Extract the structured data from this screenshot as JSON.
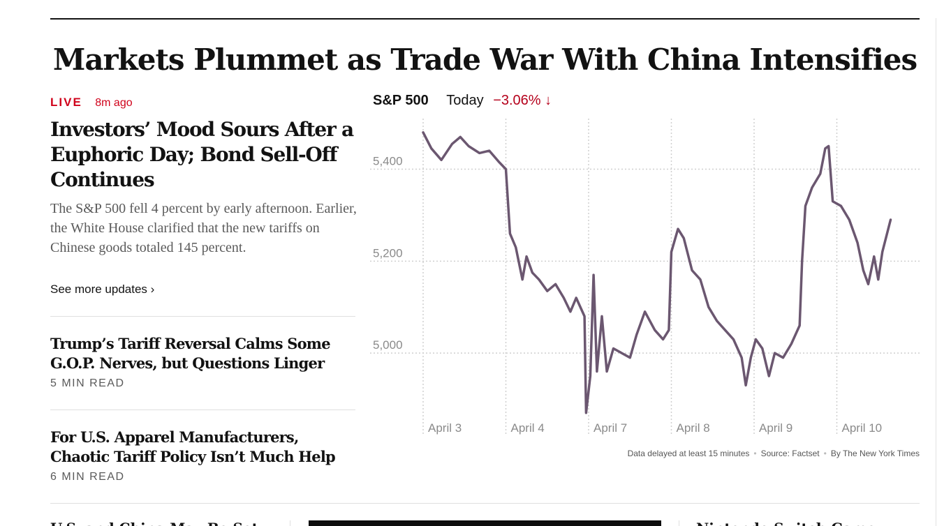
{
  "headline": "Markets Plummet as Trade War With China Intensifies",
  "lead": {
    "live_label": "LIVE",
    "time_ago": "8m ago",
    "title": "Investors’ Mood Sours After a Euphoric Day; Bond Sell-Off Continues",
    "summary": "The S&P 500 fell 4 percent by early afternoon. Earlier, the White House clarified that the new tariffs on Chinese goods totaled 145 percent.",
    "more_link": "See more updates ›"
  },
  "stories": [
    {
      "title": "Trump’s Tariff Reversal Calms Some G.O.P. Nerves, but Questions Linger",
      "read_time": "5 MIN READ"
    },
    {
      "title": "For U.S. Apparel Manufacturers, Chaotic Tariff Policy Isn’t Much Help",
      "read_time": "6 MIN READ"
    }
  ],
  "chart_header": {
    "index": "S&P 500",
    "period": "Today",
    "change": "−3.06% ↓"
  },
  "chart_notes": [
    "Data delayed at least 15 minutes",
    "Source: Factset",
    "By The New York Times"
  ],
  "bottom_cut": {
    "left_text": "U.S. and China May Be Set",
    "right_text": "Nintendo Switch Game Console"
  },
  "colors": {
    "line": "#6b5770",
    "live": "#d0021b",
    "change": "#b5001b"
  },
  "chart_data": {
    "type": "line",
    "title": "S&P 500",
    "categories": [
      "April 3",
      "April 4",
      "April 7",
      "April 8",
      "April 9",
      "April 10"
    ],
    "y_ticks": [
      5000,
      5200,
      5400
    ],
    "y_tick_labels": [
      "5,000",
      "5,200",
      "5,400"
    ],
    "ylim": [
      4850,
      5510
    ],
    "grid": true,
    "series": [
      {
        "values": [
          [
            0.0,
            5480
          ],
          [
            0.1,
            5445
          ],
          [
            0.22,
            5420
          ],
          [
            0.35,
            5455
          ],
          [
            0.45,
            5470
          ],
          [
            0.55,
            5450
          ],
          [
            0.68,
            5435
          ],
          [
            0.8,
            5440
          ],
          [
            0.92,
            5415
          ],
          [
            1.0,
            5400
          ],
          [
            1.05,
            5260
          ],
          [
            1.12,
            5230
          ],
          [
            1.2,
            5160
          ],
          [
            1.25,
            5210
          ],
          [
            1.32,
            5175
          ],
          [
            1.4,
            5160
          ],
          [
            1.5,
            5135
          ],
          [
            1.6,
            5150
          ],
          [
            1.7,
            5120
          ],
          [
            1.78,
            5090
          ],
          [
            1.85,
            5120
          ],
          [
            1.95,
            5080
          ],
          [
            1.97,
            4870
          ],
          [
            2.02,
            4950
          ],
          [
            2.06,
            5170
          ],
          [
            2.1,
            4960
          ],
          [
            2.16,
            5080
          ],
          [
            2.22,
            4960
          ],
          [
            2.3,
            5010
          ],
          [
            2.4,
            5000
          ],
          [
            2.5,
            4990
          ],
          [
            2.58,
            5040
          ],
          [
            2.68,
            5090
          ],
          [
            2.8,
            5050
          ],
          [
            2.9,
            5030
          ],
          [
            2.97,
            5050
          ],
          [
            3.0,
            5220
          ],
          [
            3.08,
            5270
          ],
          [
            3.15,
            5250
          ],
          [
            3.25,
            5180
          ],
          [
            3.35,
            5160
          ],
          [
            3.45,
            5100
          ],
          [
            3.55,
            5070
          ],
          [
            3.65,
            5050
          ],
          [
            3.75,
            5030
          ],
          [
            3.85,
            4990
          ],
          [
            3.9,
            4930
          ],
          [
            3.96,
            4990
          ],
          [
            4.02,
            5030
          ],
          [
            4.1,
            5010
          ],
          [
            4.18,
            4950
          ],
          [
            4.25,
            5000
          ],
          [
            4.35,
            4990
          ],
          [
            4.45,
            5020
          ],
          [
            4.55,
            5060
          ],
          [
            4.58,
            5200
          ],
          [
            4.62,
            5320
          ],
          [
            4.7,
            5360
          ],
          [
            4.8,
            5390
          ],
          [
            4.86,
            5445
          ],
          [
            4.9,
            5450
          ],
          [
            4.95,
            5330
          ],
          [
            5.05,
            5320
          ],
          [
            5.15,
            5290
          ],
          [
            5.25,
            5240
          ],
          [
            5.32,
            5180
          ],
          [
            5.38,
            5150
          ],
          [
            5.45,
            5210
          ],
          [
            5.5,
            5160
          ],
          [
            5.55,
            5220
          ],
          [
            5.65,
            5290
          ]
        ]
      }
    ]
  }
}
